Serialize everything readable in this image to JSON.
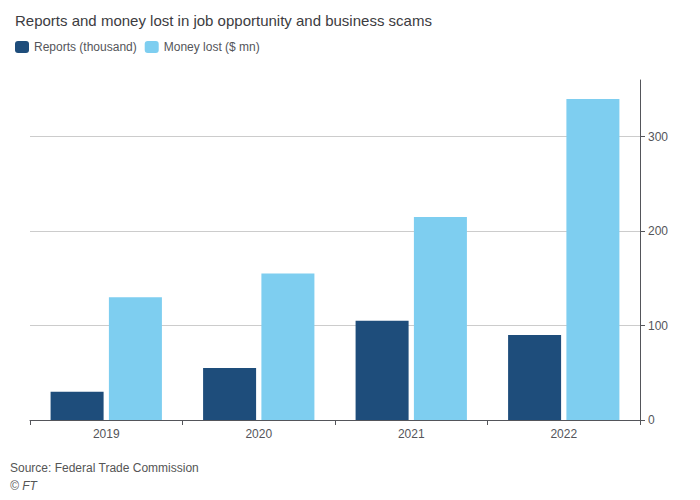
{
  "chart_data": {
    "type": "bar",
    "title": "Reports and money lost in job opportunity and business scams",
    "categories": [
      "2019",
      "2020",
      "2021",
      "2022"
    ],
    "series": [
      {
        "name": "Reports (thousand)",
        "color": "#1e4d7b",
        "values": [
          30,
          55,
          105,
          90
        ]
      },
      {
        "name": "Money lost ($ mn)",
        "color": "#7ecef0",
        "values": [
          130,
          155,
          215,
          340
        ]
      }
    ],
    "ylim": [
      0,
      360
    ],
    "yticks": [
      0,
      100,
      200,
      300
    ],
    "grid": true,
    "legend": "top-left",
    "annotations": [
      "Source: Federal Trade Commission",
      "© FT"
    ]
  }
}
